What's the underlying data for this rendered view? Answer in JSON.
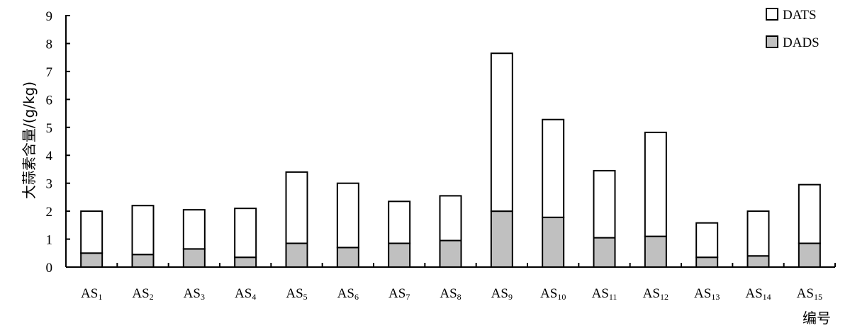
{
  "chart_data": {
    "type": "bar",
    "stacked": true,
    "categories": [
      {
        "main": "AS",
        "sub": "1"
      },
      {
        "main": "AS",
        "sub": "2"
      },
      {
        "main": "AS",
        "sub": "3"
      },
      {
        "main": "AS",
        "sub": "4"
      },
      {
        "main": "AS",
        "sub": "5"
      },
      {
        "main": "AS",
        "sub": "6"
      },
      {
        "main": "AS",
        "sub": "7"
      },
      {
        "main": "AS",
        "sub": "8"
      },
      {
        "main": "AS",
        "sub": "9"
      },
      {
        "main": "AS",
        "sub": "10"
      },
      {
        "main": "AS",
        "sub": "11"
      },
      {
        "main": "AS",
        "sub": "12"
      },
      {
        "main": "AS",
        "sub": "13"
      },
      {
        "main": "AS",
        "sub": "14"
      },
      {
        "main": "AS",
        "sub": "15"
      }
    ],
    "series": [
      {
        "name": "DADS",
        "color": "#c0c0c0",
        "values": [
          0.5,
          0.45,
          0.65,
          0.35,
          0.85,
          0.7,
          0.85,
          0.95,
          2.0,
          1.78,
          1.05,
          1.1,
          0.35,
          0.4,
          0.85
        ]
      },
      {
        "name": "DATS",
        "color": "#ffffff",
        "values": [
          1.5,
          1.75,
          1.4,
          1.75,
          2.55,
          2.3,
          1.5,
          1.6,
          5.65,
          3.5,
          2.4,
          3.72,
          1.23,
          1.6,
          2.1
        ]
      }
    ],
    "legend_order": [
      "DATS",
      "DADS"
    ],
    "legend_position": "top-right",
    "ylabel": "大蒜素含量/(g/kg)",
    "xlabel": "编号",
    "ylim": [
      0,
      9
    ],
    "yticks": [
      0,
      1,
      2,
      3,
      4,
      5,
      6,
      7,
      8,
      9
    ],
    "grid": false
  }
}
